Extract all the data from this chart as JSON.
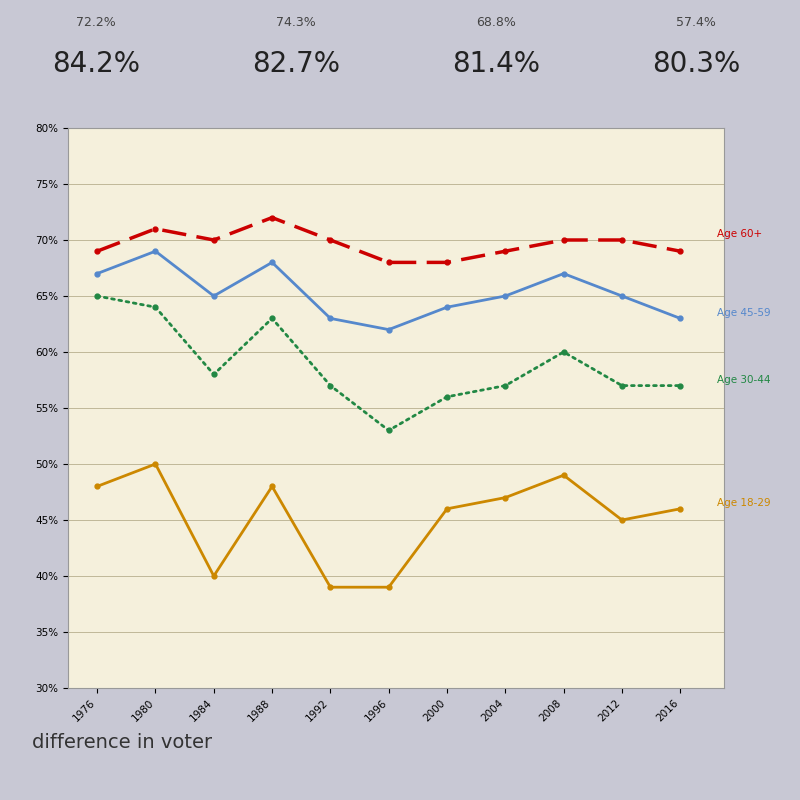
{
  "years": [
    1976,
    1980,
    1984,
    1988,
    1992,
    1996,
    2000,
    2004,
    2008,
    2012,
    2016
  ],
  "age_60plus": [
    69,
    71,
    70,
    72,
    70,
    68,
    68,
    69,
    70,
    70,
    69
  ],
  "age_45_59": [
    67,
    69,
    65,
    68,
    63,
    62,
    64,
    65,
    67,
    65,
    63
  ],
  "age_30_44": [
    65,
    64,
    58,
    63,
    57,
    53,
    56,
    57,
    60,
    57,
    57
  ],
  "age_18_29": [
    48,
    50,
    40,
    48,
    39,
    39,
    46,
    47,
    49,
    45,
    46
  ],
  "header_percentages": [
    "84.2%",
    "82.7%",
    "81.4%",
    "80.3%"
  ],
  "header_top_row": [
    "72.2%",
    "74.3%",
    "68.8%",
    "57.4%"
  ],
  "background_color": "#f5f0dc",
  "color_60plus": "#cc0000",
  "color_45_59": "#5588cc",
  "color_30_44": "#228844",
  "color_18_29": "#cc8800",
  "ylim": [
    30,
    80
  ],
  "yticks": [
    30,
    35,
    40,
    45,
    50,
    55,
    60,
    65,
    70,
    75,
    80
  ],
  "ytick_labels": [
    "30%",
    "35%",
    "40%",
    "45%",
    "50%",
    "55%",
    "60%",
    "65%",
    "70%",
    "75%",
    "80%"
  ],
  "legend_labels": [
    "Age 60+",
    "Age 45-59",
    "Age 30-44",
    "Age 18-29"
  ],
  "outer_bg": "#c8c8d4",
  "header_bg": "#e8e8f0",
  "separator_color": "#aaaabc",
  "bottom_text": "difference in voter",
  "bottom_bg": "#f0f0f0"
}
